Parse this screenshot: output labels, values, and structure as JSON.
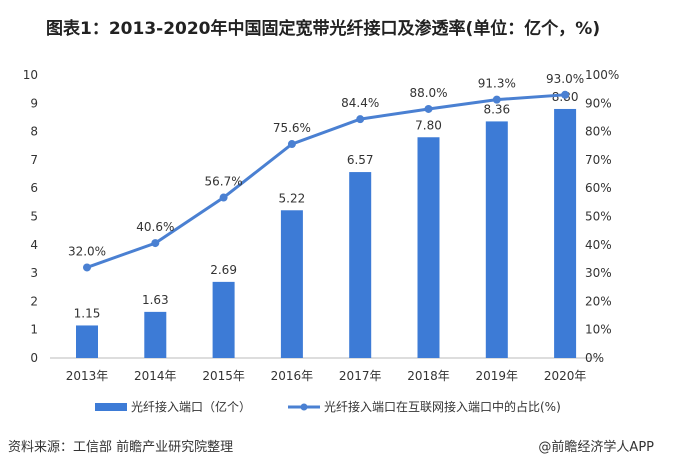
{
  "title": "图表1：2013-2020年中国固定宽带光纤接口及渗透率(单位：亿个，%)",
  "source": "资料来源：工信部 前瞻产业研究院整理",
  "brand": "@前瞻经济学人APP",
  "colors": {
    "bar": "#3d7bd6",
    "line": "#4a80d2"
  },
  "chart_data": {
    "type": "bar+line",
    "categories": [
      "2013年",
      "2014年",
      "2015年",
      "2016年",
      "2017年",
      "2018年",
      "2019年",
      "2020年"
    ],
    "series": [
      {
        "name": "光纤接入端口（亿个）",
        "type": "bar",
        "axis": "left",
        "values": [
          1.15,
          1.63,
          2.69,
          5.22,
          6.57,
          7.8,
          8.36,
          8.8
        ],
        "labels": [
          "1.15",
          "1.63",
          "2.69",
          "5.22",
          "6.57",
          "7.80",
          "8.36",
          "8.80"
        ]
      },
      {
        "name": "光纤接入端口在互联网接入端口中的占比(%)",
        "type": "line",
        "axis": "right",
        "values": [
          32.0,
          40.6,
          56.7,
          75.6,
          84.4,
          88.0,
          91.3,
          93.0
        ],
        "labels": [
          "32.0%",
          "40.6%",
          "56.7%",
          "75.6%",
          "84.4%",
          "88.0%",
          "91.3%",
          "93.0%"
        ]
      }
    ],
    "left_axis": {
      "ylim": [
        0,
        10
      ],
      "ticks": [
        "0",
        "1",
        "2",
        "3",
        "4",
        "5",
        "6",
        "7",
        "8",
        "9",
        "10"
      ]
    },
    "right_axis": {
      "ylim": [
        0,
        100
      ],
      "ticks": [
        "0%",
        "10%",
        "20%",
        "30%",
        "40%",
        "50%",
        "60%",
        "70%",
        "80%",
        "90%",
        "100%"
      ]
    },
    "legend_position": "bottom",
    "grid": false
  }
}
